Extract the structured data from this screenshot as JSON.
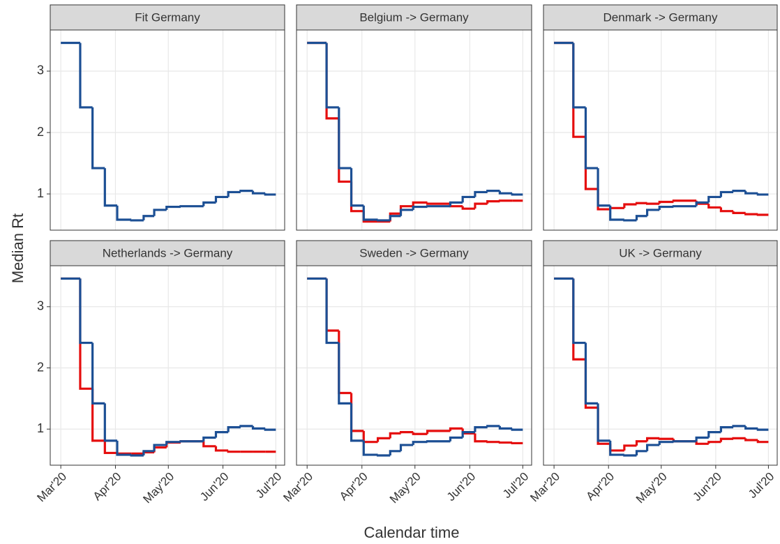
{
  "xlabel": "Calendar time",
  "ylabel": "Median Rt",
  "chart_data": [
    {
      "type": "line",
      "title": "Fit Germany",
      "step": "post",
      "grid": true,
      "x": [
        0,
        11,
        18,
        25,
        32,
        40,
        47,
        53,
        60,
        68,
        81,
        88,
        95,
        102,
        109,
        116,
        122
      ],
      "xlim": [
        -6,
        127
      ],
      "xticks": [
        {
          "value": 0,
          "label": "Mar'20"
        },
        {
          "value": 31,
          "label": "Apr'20"
        },
        {
          "value": 61,
          "label": "May'20"
        },
        {
          "value": 92,
          "label": "Jun'20"
        },
        {
          "value": 122,
          "label": "Jul'20"
        }
      ],
      "ylim": [
        0.41,
        3.67
      ],
      "yticks": [
        1,
        2,
        3
      ],
      "series": [
        {
          "color": "#1c4f94",
          "values": [
            3.46,
            2.41,
            1.42,
            0.81,
            0.58,
            0.57,
            0.64,
            0.74,
            0.79,
            0.8,
            0.86,
            0.95,
            1.03,
            1.05,
            1.01,
            0.99,
            0.99
          ]
        }
      ]
    },
    {
      "type": "line",
      "title": "Belgium -> Germany",
      "step": "post",
      "grid": true,
      "x": [
        0,
        11,
        18,
        25,
        32,
        40,
        47,
        53,
        60,
        68,
        81,
        88,
        95,
        102,
        109,
        116,
        122
      ],
      "xlim": [
        -6,
        127
      ],
      "xticks": [
        {
          "value": 0,
          "label": "Mar'20"
        },
        {
          "value": 31,
          "label": "Apr'20"
        },
        {
          "value": 61,
          "label": "May'20"
        },
        {
          "value": 92,
          "label": "Jun'20"
        },
        {
          "value": 122,
          "label": "Jul'20"
        }
      ],
      "ylim": [
        0.41,
        3.67
      ],
      "yticks": [
        1,
        2,
        3
      ],
      "series": [
        {
          "color": "#e50e0e",
          "values": [
            3.46,
            2.23,
            1.2,
            0.72,
            0.55,
            0.55,
            0.68,
            0.8,
            0.86,
            0.84,
            0.8,
            0.76,
            0.84,
            0.88,
            0.89,
            0.89,
            0.89
          ]
        },
        {
          "color": "#1c4f94",
          "values": [
            3.46,
            2.41,
            1.42,
            0.81,
            0.58,
            0.57,
            0.64,
            0.74,
            0.79,
            0.8,
            0.86,
            0.95,
            1.03,
            1.05,
            1.01,
            0.99,
            0.99
          ]
        }
      ]
    },
    {
      "type": "line",
      "title": "Denmark -> Germany",
      "step": "post",
      "grid": true,
      "x": [
        0,
        11,
        18,
        25,
        32,
        40,
        47,
        53,
        60,
        68,
        81,
        88,
        95,
        102,
        109,
        116,
        122
      ],
      "xlim": [
        -6,
        127
      ],
      "xticks": [
        {
          "value": 0,
          "label": "Mar'20"
        },
        {
          "value": 31,
          "label": "Apr'20"
        },
        {
          "value": 61,
          "label": "May'20"
        },
        {
          "value": 92,
          "label": "Jun'20"
        },
        {
          "value": 122,
          "label": "Jul'20"
        }
      ],
      "ylim": [
        0.41,
        3.67
      ],
      "yticks": [
        1,
        2,
        3
      ],
      "series": [
        {
          "color": "#e50e0e",
          "values": [
            3.46,
            1.93,
            1.08,
            0.75,
            0.77,
            0.83,
            0.85,
            0.84,
            0.87,
            0.89,
            0.84,
            0.78,
            0.72,
            0.69,
            0.67,
            0.66,
            0.66
          ]
        },
        {
          "color": "#1c4f94",
          "values": [
            3.46,
            2.41,
            1.42,
            0.81,
            0.58,
            0.57,
            0.64,
            0.74,
            0.79,
            0.8,
            0.86,
            0.95,
            1.03,
            1.05,
            1.01,
            0.99,
            0.99
          ]
        }
      ]
    },
    {
      "type": "line",
      "title": "Netherlands -> Germany",
      "step": "post",
      "grid": true,
      "x": [
        0,
        11,
        18,
        25,
        32,
        40,
        47,
        53,
        60,
        68,
        81,
        88,
        95,
        102,
        109,
        116,
        122
      ],
      "xlim": [
        -6,
        127
      ],
      "xticks": [
        {
          "value": 0,
          "label": "Mar'20"
        },
        {
          "value": 31,
          "label": "Apr'20"
        },
        {
          "value": 61,
          "label": "May'20"
        },
        {
          "value": 92,
          "label": "Jun'20"
        },
        {
          "value": 122,
          "label": "Jul'20"
        }
      ],
      "ylim": [
        0.41,
        3.67
      ],
      "yticks": [
        1,
        2,
        3
      ],
      "series": [
        {
          "color": "#e50e0e",
          "values": [
            3.46,
            1.66,
            0.81,
            0.61,
            0.6,
            0.6,
            0.62,
            0.7,
            0.78,
            0.8,
            0.72,
            0.65,
            0.63,
            0.63,
            0.63,
            0.63,
            0.63
          ]
        },
        {
          "color": "#1c4f94",
          "values": [
            3.46,
            2.41,
            1.42,
            0.81,
            0.58,
            0.57,
            0.64,
            0.74,
            0.79,
            0.8,
            0.86,
            0.95,
            1.03,
            1.05,
            1.01,
            0.99,
            0.99
          ]
        }
      ]
    },
    {
      "type": "line",
      "title": "Sweden -> Germany",
      "step": "post",
      "grid": true,
      "x": [
        0,
        11,
        18,
        25,
        32,
        40,
        47,
        53,
        60,
        68,
        81,
        88,
        95,
        102,
        109,
        116,
        122
      ],
      "xlim": [
        -6,
        127
      ],
      "xticks": [
        {
          "value": 0,
          "label": "Mar'20"
        },
        {
          "value": 31,
          "label": "Apr'20"
        },
        {
          "value": 61,
          "label": "May'20"
        },
        {
          "value": 92,
          "label": "Jun'20"
        },
        {
          "value": 122,
          "label": "Jul'20"
        }
      ],
      "ylim": [
        0.41,
        3.67
      ],
      "yticks": [
        1,
        2,
        3
      ],
      "series": [
        {
          "color": "#e50e0e",
          "values": [
            3.46,
            2.61,
            1.59,
            0.97,
            0.79,
            0.85,
            0.93,
            0.95,
            0.92,
            0.97,
            1.01,
            0.93,
            0.8,
            0.79,
            0.78,
            0.77,
            0.77
          ]
        },
        {
          "color": "#1c4f94",
          "values": [
            3.46,
            2.41,
            1.42,
            0.81,
            0.58,
            0.57,
            0.64,
            0.74,
            0.79,
            0.8,
            0.86,
            0.95,
            1.03,
            1.05,
            1.01,
            0.99,
            0.99
          ]
        }
      ]
    },
    {
      "type": "line",
      "title": "UK -> Germany",
      "step": "post",
      "grid": true,
      "x": [
        0,
        11,
        18,
        25,
        32,
        40,
        47,
        53,
        60,
        68,
        81,
        88,
        95,
        102,
        109,
        116,
        122
      ],
      "xlim": [
        -6,
        127
      ],
      "xticks": [
        {
          "value": 0,
          "label": "Mar'20"
        },
        {
          "value": 31,
          "label": "Apr'20"
        },
        {
          "value": 61,
          "label": "May'20"
        },
        {
          "value": 92,
          "label": "Jun'20"
        },
        {
          "value": 122,
          "label": "Jul'20"
        }
      ],
      "ylim": [
        0.41,
        3.67
      ],
      "yticks": [
        1,
        2,
        3
      ],
      "series": [
        {
          "color": "#e50e0e",
          "values": [
            3.46,
            2.14,
            1.35,
            0.76,
            0.65,
            0.73,
            0.8,
            0.85,
            0.84,
            0.8,
            0.76,
            0.79,
            0.84,
            0.85,
            0.82,
            0.79,
            0.79
          ]
        },
        {
          "color": "#1c4f94",
          "values": [
            3.46,
            2.41,
            1.42,
            0.81,
            0.58,
            0.57,
            0.64,
            0.74,
            0.79,
            0.8,
            0.86,
            0.95,
            1.03,
            1.05,
            1.01,
            0.99,
            0.99
          ]
        }
      ]
    }
  ]
}
